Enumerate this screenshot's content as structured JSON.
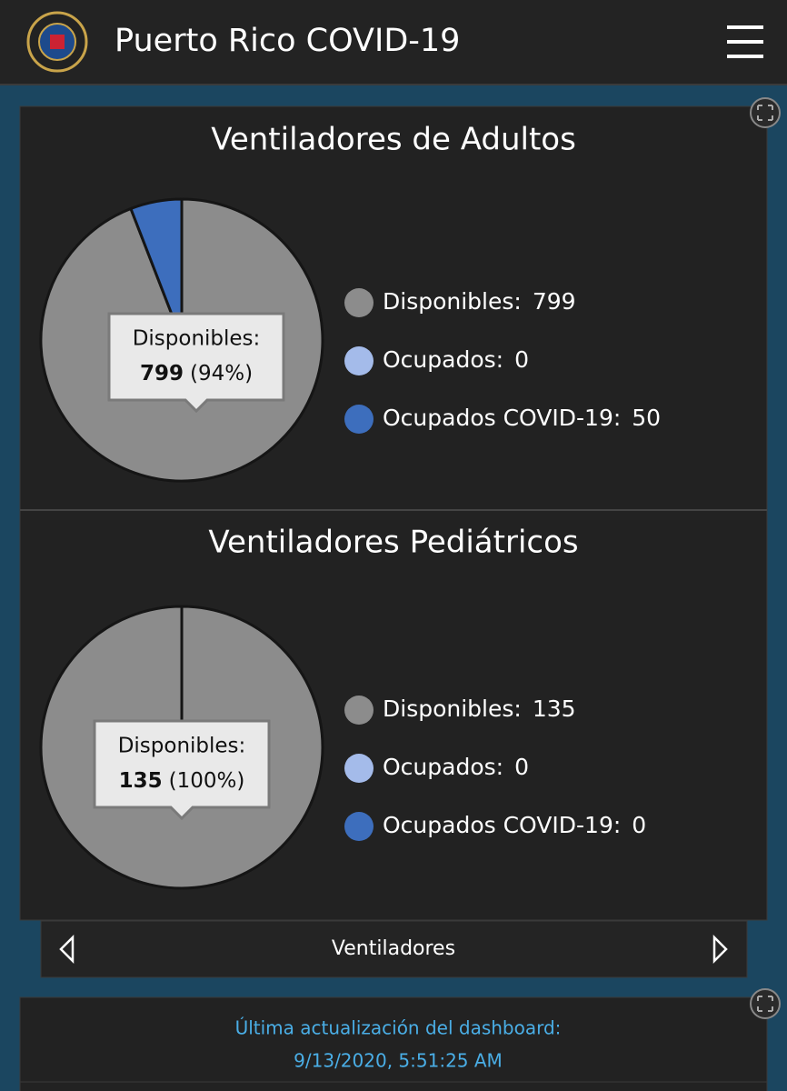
{
  "header": {
    "title": "Puerto Rico COVID-19"
  },
  "chart_data": [
    {
      "type": "pie",
      "title": "Ventiladores de Adultos",
      "categories": [
        "Disponibles:",
        "Ocupados:",
        "Ocupados COVID-19:"
      ],
      "values": [
        799,
        0,
        50
      ],
      "colors": [
        "#8c8c8c",
        "#a4bbea",
        "#3d6ebd"
      ],
      "tooltip_percent": "(94%)"
    },
    {
      "type": "pie",
      "title": "Ventiladores Pediátricos",
      "categories": [
        "Disponibles:",
        "Ocupados:",
        "Ocupados COVID-19:"
      ],
      "values": [
        135,
        0,
        0
      ],
      "colors": [
        "#8c8c8c",
        "#a4bbea",
        "#3d6ebd"
      ],
      "tooltip_percent": "(100%)"
    }
  ],
  "nav": {
    "label": "Ventiladores"
  },
  "footer": {
    "label": "Última actualización del dashboard:",
    "timestamp": "9/13/2020, 5:51:25 AM"
  }
}
